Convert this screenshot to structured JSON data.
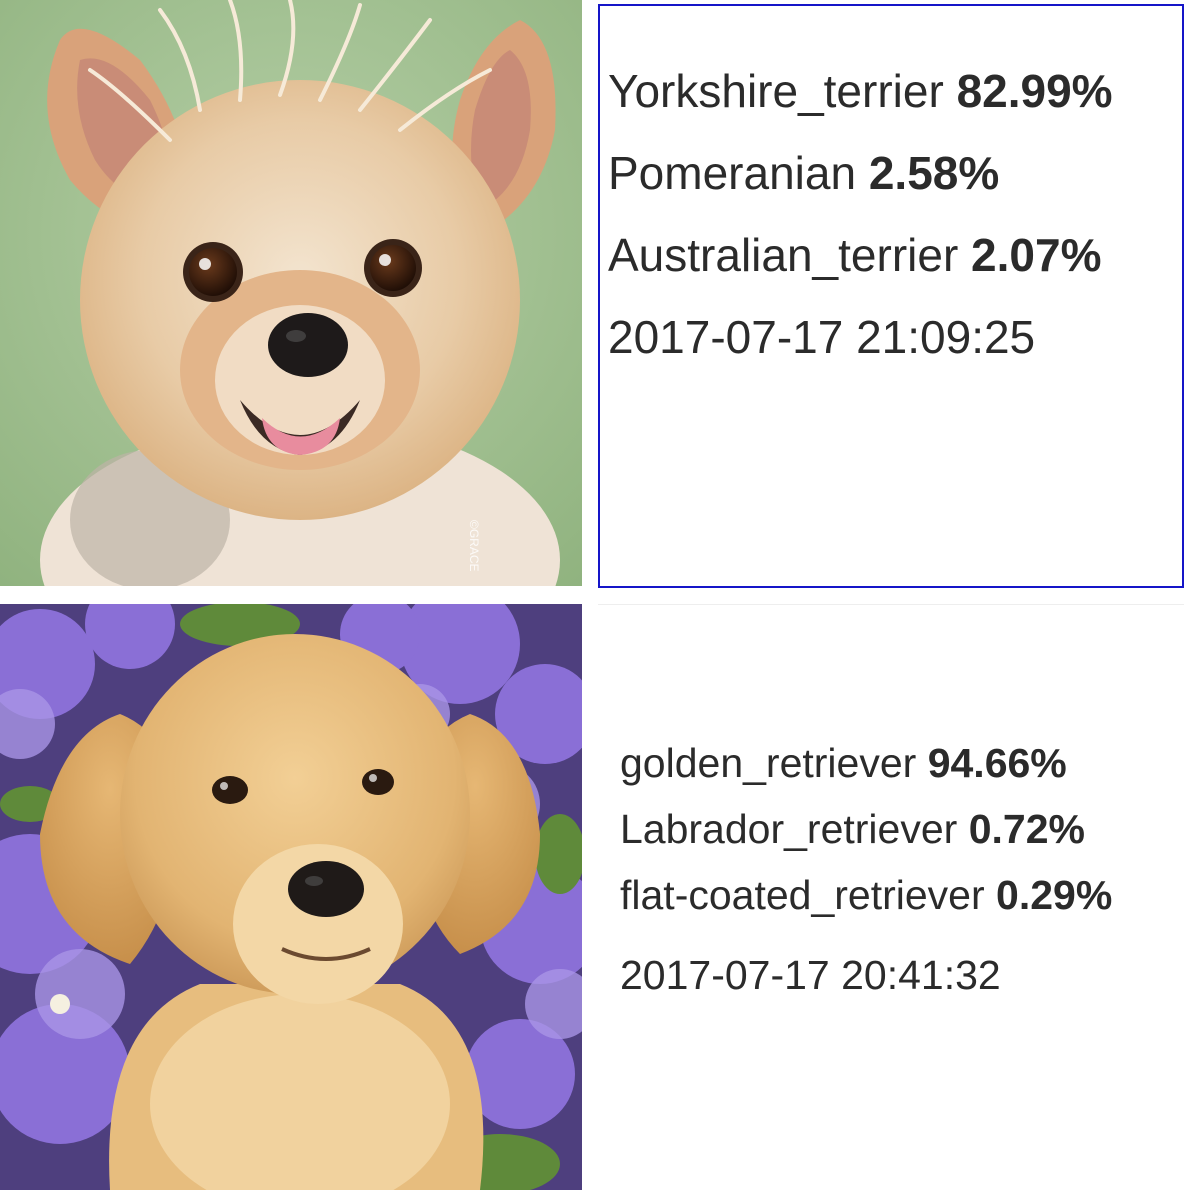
{
  "results": [
    {
      "predictions": [
        {
          "label": "Yorkshire_terrier",
          "percent": "82.99%"
        },
        {
          "label": "Pomeranian",
          "percent": "2.58%"
        },
        {
          "label": "Australian_terrier",
          "percent": "2.07%"
        }
      ],
      "timestamp": "2017-07-17 21:09:25",
      "image": {
        "subject": "yorkshire-terrier-puppy-photo",
        "watermark": "©GRACE"
      },
      "colors": {
        "background": "#9dbf8e",
        "frame": "#1515c8"
      }
    },
    {
      "predictions": [
        {
          "label": "golden_retriever",
          "percent": "94.66%"
        },
        {
          "label": "Labrador_retriever",
          "percent": "0.72%"
        },
        {
          "label": "flat-coated_retriever",
          "percent": "0.29%"
        }
      ],
      "timestamp": "2017-07-17 20:41:32",
      "image": {
        "subject": "golden-retriever-puppy-photo"
      },
      "colors": {
        "background": "#7a5fc4"
      }
    }
  ]
}
